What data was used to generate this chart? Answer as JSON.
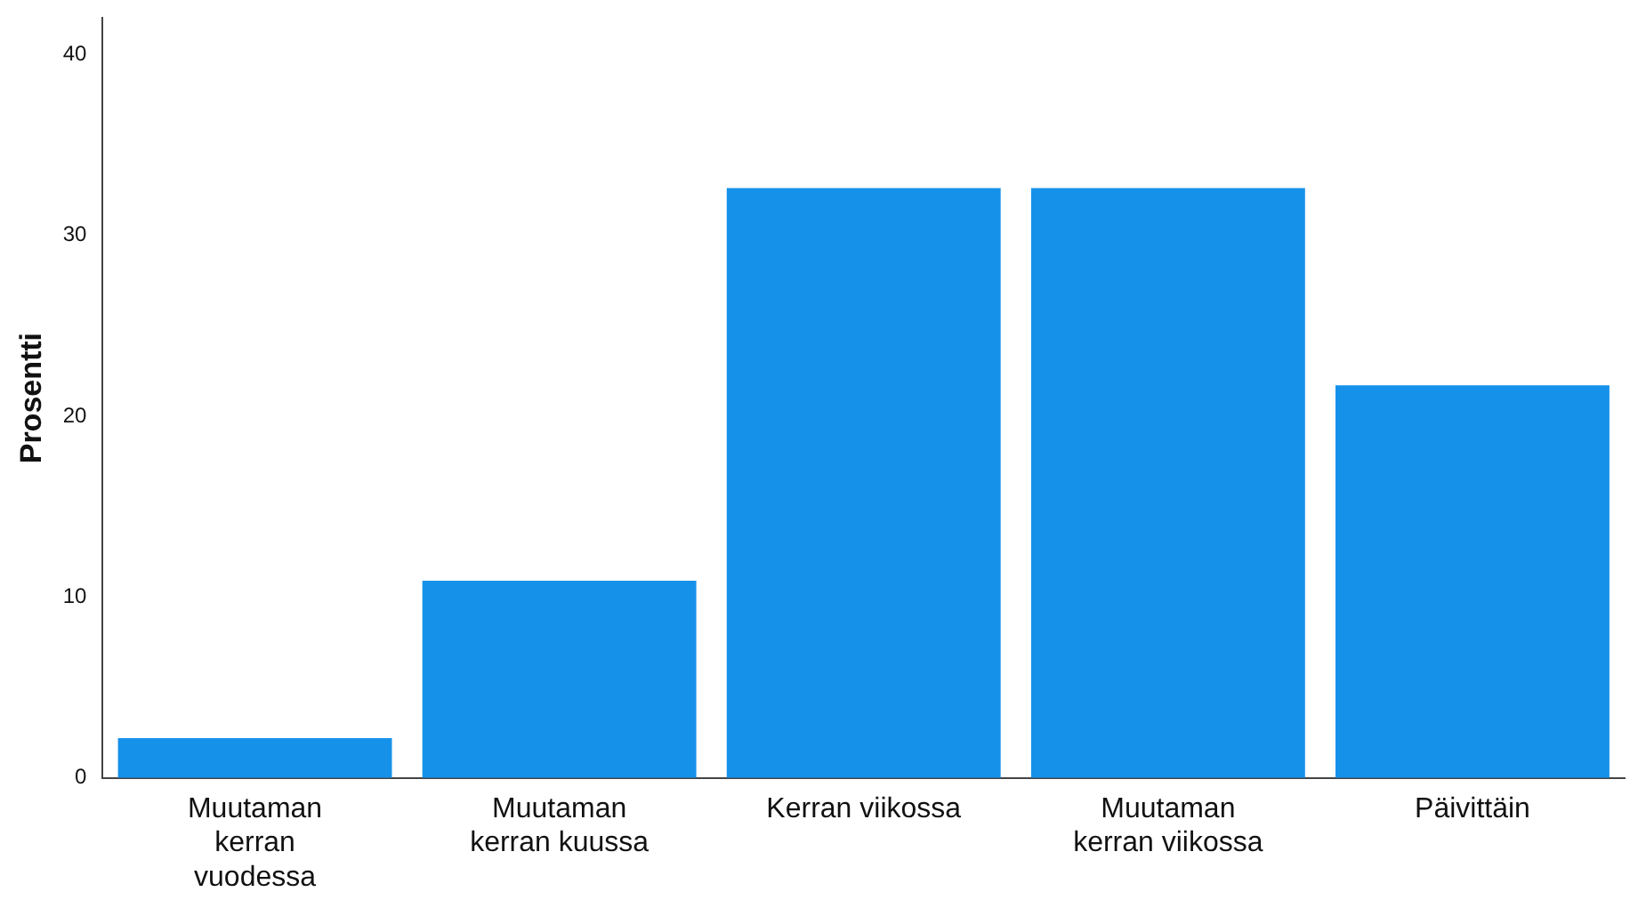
{
  "chart_data": {
    "type": "bar",
    "ylabel": "Prosentti",
    "categories": [
      "Muutaman kerran vuodessa",
      "Muutaman kerran kuussa",
      "Kerran viikossa",
      "Muutaman kerran viikossa",
      "Päivittäin"
    ],
    "values": [
      2.2,
      10.9,
      32.6,
      32.6,
      21.7
    ],
    "color": "#1591ea",
    "ylim": [
      0,
      42
    ],
    "yticks": [
      0,
      10,
      20,
      30,
      40
    ],
    "grid": false,
    "legend": false
  }
}
